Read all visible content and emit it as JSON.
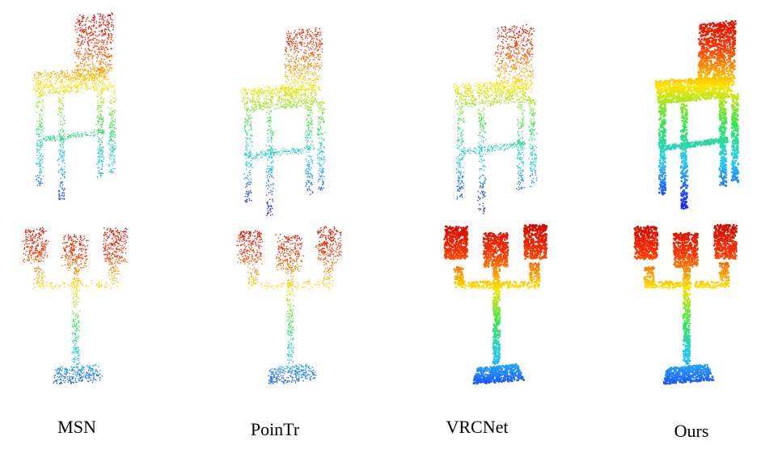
{
  "methods": [
    {
      "label": "MSN"
    },
    {
      "label": "PoinTr"
    },
    {
      "label": "VRCNet"
    },
    {
      "label": "Ours"
    }
  ],
  "rows": [
    "chair",
    "candelabra"
  ],
  "colormap": [
    "#1a2cff",
    "#22c8ff",
    "#2ee84a",
    "#ffe400",
    "#ff3200",
    "#c80000"
  ]
}
